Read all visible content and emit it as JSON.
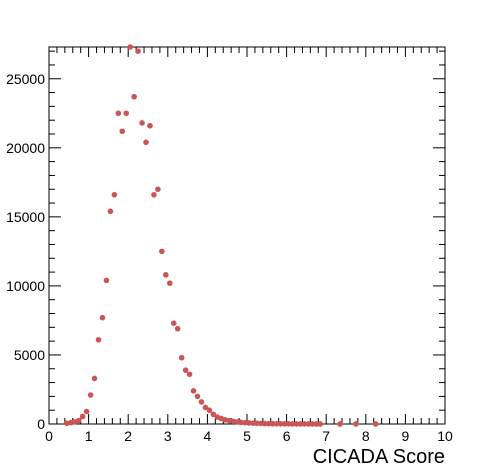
{
  "chart_data": {
    "type": "scatter",
    "title": "",
    "xlabel": "CICADA Score",
    "ylabel": "",
    "xlim": [
      0,
      10
    ],
    "ylim": [
      0,
      27300
    ],
    "grid": false,
    "legend": "none",
    "marker_color": "#cc5555",
    "x_ticks": [
      "0",
      "1",
      "2",
      "3",
      "4",
      "5",
      "6",
      "7",
      "8",
      "9",
      "10"
    ],
    "y_ticks": [
      "0",
      "5000",
      "10000",
      "15000",
      "20000",
      "25000"
    ],
    "series": [
      {
        "x": [
          0.45,
          0.55,
          0.65,
          0.75,
          0.85,
          0.95,
          1.05,
          1.15,
          1.25,
          1.35,
          1.45,
          1.55,
          1.65,
          1.75,
          1.85,
          1.95,
          2.05,
          2.15,
          2.25,
          2.35,
          2.45,
          2.55,
          2.65,
          2.75,
          2.85,
          2.95,
          3.05,
          3.15,
          3.25,
          3.35,
          3.45,
          3.55,
          3.65,
          3.75,
          3.85,
          3.95,
          4.05,
          4.15,
          4.25,
          4.35,
          4.45,
          4.55,
          4.65,
          4.75,
          4.85,
          4.95,
          5.05,
          5.15,
          5.25,
          5.35,
          5.45,
          5.55,
          5.65,
          5.75,
          5.85,
          5.95,
          6.05,
          6.15,
          6.25,
          6.35,
          6.45,
          6.55,
          6.65,
          6.75,
          6.85,
          7.35,
          7.75,
          8.25
        ],
        "y": [
          50,
          100,
          150,
          250,
          550,
          900,
          2100,
          3300,
          6100,
          7700,
          10400,
          15400,
          16600,
          22500,
          21200,
          22500,
          27300,
          23700,
          27000,
          21800,
          20400,
          21600,
          16600,
          17000,
          12500,
          10800,
          10200,
          7300,
          6900,
          4800,
          3900,
          3600,
          2400,
          2000,
          1600,
          1200,
          1000,
          700,
          500,
          400,
          300,
          250,
          200,
          150,
          120,
          100,
          80,
          60,
          50,
          40,
          30,
          25,
          20,
          15,
          15,
          10,
          10,
          8,
          6,
          5,
          5,
          4,
          3,
          3,
          2,
          2,
          1,
          1
        ]
      }
    ]
  }
}
